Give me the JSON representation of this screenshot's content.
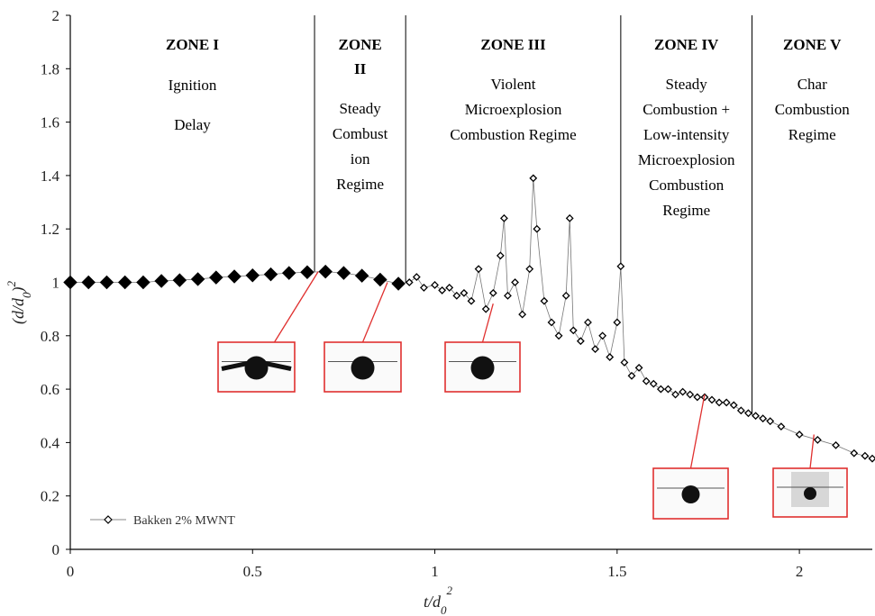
{
  "chart_data": {
    "type": "scatter",
    "xlabel": "t/d",
    "xlabel_sub": "0",
    "xlabel_sup": "2",
    "ylabel": "(d/d",
    "ylabel_sub": "0",
    "ylabel_end": ")",
    "ylabel_sup": "2",
    "xlim": [
      0,
      2.2
    ],
    "ylim": [
      0,
      2
    ],
    "xticks": [
      "0",
      "0.5",
      "1",
      "1.5",
      "2"
    ],
    "xtick_values": [
      0,
      0.5,
      1,
      1.5,
      2
    ],
    "yticks": [
      "0",
      "0.2",
      "0.4",
      "0.6",
      "0.8",
      "1",
      "1.2",
      "1.4",
      "1.6",
      "1.8",
      "2"
    ],
    "ytick_values": [
      0,
      0.2,
      0.4,
      0.6,
      0.8,
      1.0,
      1.2,
      1.4,
      1.6,
      1.8,
      2.0
    ],
    "grid": false,
    "legend_position": "bottom-left",
    "series": [
      {
        "name": "Bakken 2% MWNT",
        "marker": "diamond",
        "color": "#000000",
        "x": [
          0,
          0.05,
          0.1,
          0.15,
          0.2,
          0.25,
          0.3,
          0.35,
          0.4,
          0.45,
          0.5,
          0.55,
          0.6,
          0.65,
          0.7,
          0.75,
          0.8,
          0.85,
          0.9,
          0.93,
          0.95,
          0.97,
          1.0,
          1.02,
          1.04,
          1.06,
          1.08,
          1.1,
          1.12,
          1.14,
          1.16,
          1.18,
          1.19,
          1.2,
          1.22,
          1.24,
          1.26,
          1.27,
          1.28,
          1.3,
          1.32,
          1.34,
          1.36,
          1.37,
          1.38,
          1.4,
          1.42,
          1.44,
          1.46,
          1.48,
          1.5,
          1.51,
          1.52,
          1.54,
          1.56,
          1.58,
          1.6,
          1.62,
          1.64,
          1.66,
          1.68,
          1.7,
          1.72,
          1.74,
          1.76,
          1.78,
          1.8,
          1.82,
          1.84,
          1.86,
          1.88,
          1.9,
          1.92,
          1.95,
          2.0,
          2.05,
          2.1,
          2.15,
          2.18,
          2.2
        ],
        "y": [
          1.0,
          1.0,
          1.0,
          1.0,
          1.0,
          1.005,
          1.008,
          1.012,
          1.018,
          1.022,
          1.026,
          1.03,
          1.035,
          1.038,
          1.04,
          1.035,
          1.025,
          1.01,
          0.995,
          1.0,
          1.02,
          0.98,
          0.99,
          0.97,
          0.98,
          0.95,
          0.96,
          0.93,
          1.05,
          0.9,
          0.96,
          1.1,
          1.24,
          0.95,
          1.0,
          0.88,
          1.05,
          1.39,
          1.2,
          0.93,
          0.85,
          0.8,
          0.95,
          1.24,
          0.82,
          0.78,
          0.85,
          0.75,
          0.8,
          0.72,
          0.85,
          1.06,
          0.7,
          0.65,
          0.68,
          0.63,
          0.62,
          0.6,
          0.6,
          0.58,
          0.59,
          0.58,
          0.57,
          0.57,
          0.56,
          0.55,
          0.55,
          0.54,
          0.52,
          0.51,
          0.5,
          0.49,
          0.48,
          0.46,
          0.43,
          0.41,
          0.39,
          0.36,
          0.35,
          0.34
        ]
      }
    ],
    "zone_boundaries": [
      0.67,
      0.92,
      1.51,
      1.87
    ],
    "zones": [
      {
        "title": "ZONE I",
        "desc": [
          "Ignition",
          "Delay"
        ]
      },
      {
        "title": "ZONE",
        "title2": "II",
        "desc": [
          "Steady",
          "Combust",
          "ion",
          "Regime"
        ]
      },
      {
        "title": "ZONE III",
        "desc": [
          "Violent",
          "Microexplosion",
          "Combustion Regime"
        ]
      },
      {
        "title": "ZONE IV",
        "desc": [
          "Steady",
          "Combustion +",
          "Low-intensity",
          "Microexplosion",
          "Combustion",
          "Regime"
        ]
      },
      {
        "title": "ZONE V",
        "desc": [
          "Char",
          "Combustion",
          "Regime"
        ]
      }
    ],
    "inset_images": [
      {
        "name": "inset-zone-1",
        "points_to": [
          0.68,
          1.04
        ],
        "droplet": "large-with-arms"
      },
      {
        "name": "inset-zone-2",
        "points_to": [
          0.87,
          1.0
        ],
        "droplet": "large"
      },
      {
        "name": "inset-zone-3",
        "points_to": [
          1.16,
          0.92
        ],
        "droplet": "large-flat-top"
      },
      {
        "name": "inset-zone-4",
        "points_to": [
          1.74,
          0.58
        ],
        "droplet": "medium"
      },
      {
        "name": "inset-zone-5",
        "points_to": [
          2.04,
          0.43
        ],
        "droplet": "small-smoky"
      }
    ]
  }
}
